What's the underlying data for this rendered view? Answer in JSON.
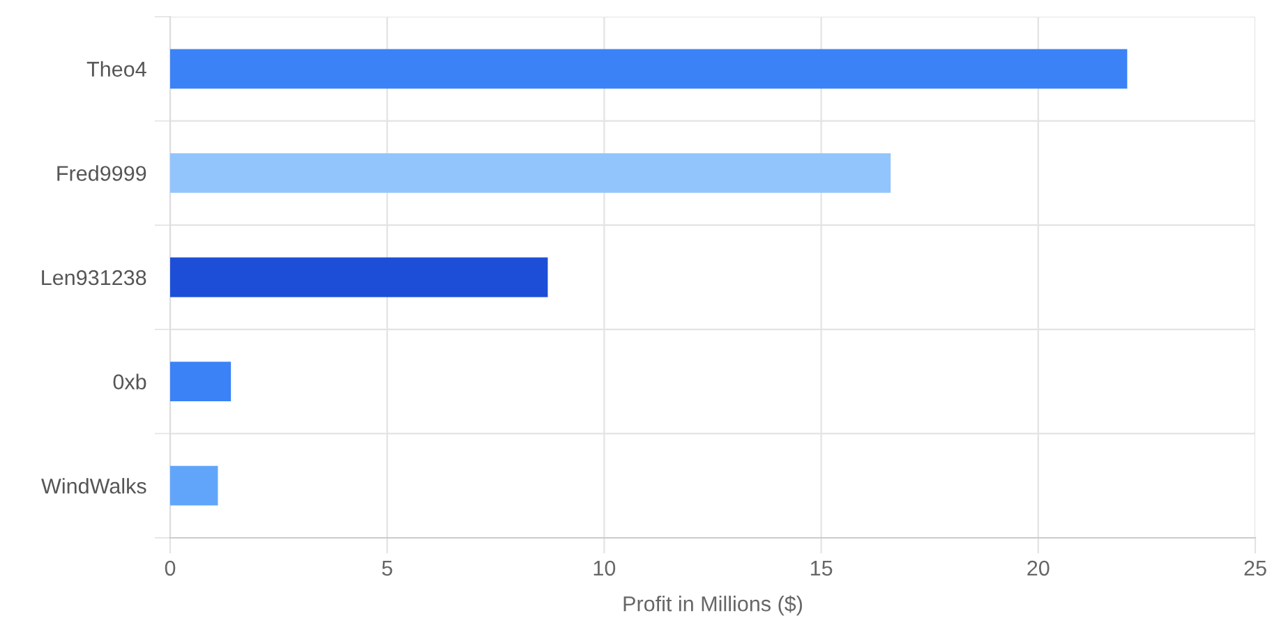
{
  "chart_data": {
    "type": "bar",
    "orientation": "horizontal",
    "xlabel": "Profit in Millions ($)",
    "categories": [
      "Theo4",
      "Fred9999",
      "Len931238",
      "0xb",
      "WindWalks"
    ],
    "values": [
      22.05,
      16.6,
      8.7,
      1.4,
      1.1
    ],
    "colors": [
      "#3b82f6",
      "#93c5fd",
      "#1d4ed8",
      "#3b82f6",
      "#60a5fa"
    ],
    "xlim": [
      0,
      25
    ],
    "xticks": [
      0,
      5,
      10,
      15,
      20,
      25
    ],
    "grid": true
  }
}
